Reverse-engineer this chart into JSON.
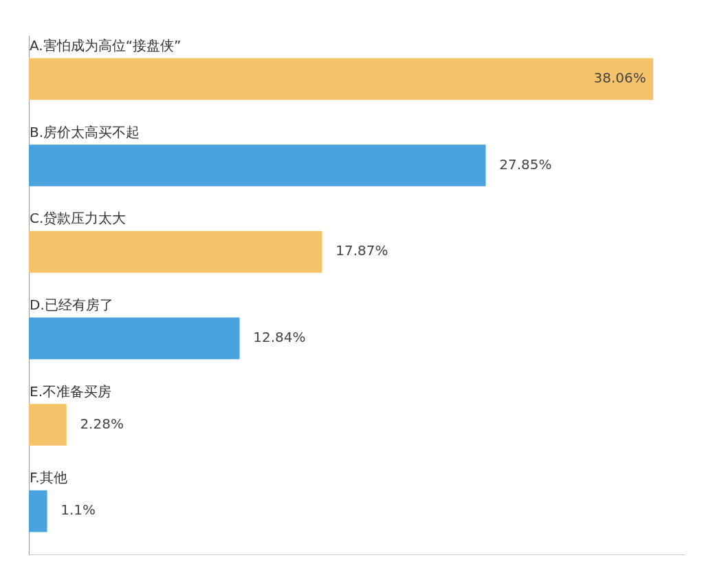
{
  "chart_data": {
    "type": "bar",
    "orientation": "horizontal",
    "value_labels": [
      "38.06%",
      "27.85%",
      "17.87%",
      "12.84%",
      "2.28%",
      "1.1%"
    ],
    "categories": [
      "A.害怕成为高位“接盘侠”",
      "B.房价太高买不起",
      "C.贷款压力太大",
      "D.已经有房了",
      "E.不准备买房",
      "F.其他"
    ],
    "values": [
      38.06,
      27.85,
      17.87,
      12.84,
      2.28,
      1.1
    ],
    "colors": [
      "#f5c46a",
      "#4aa3df",
      "#f5c46a",
      "#4aa3df",
      "#f5c46a",
      "#4aa3df"
    ]
  }
}
